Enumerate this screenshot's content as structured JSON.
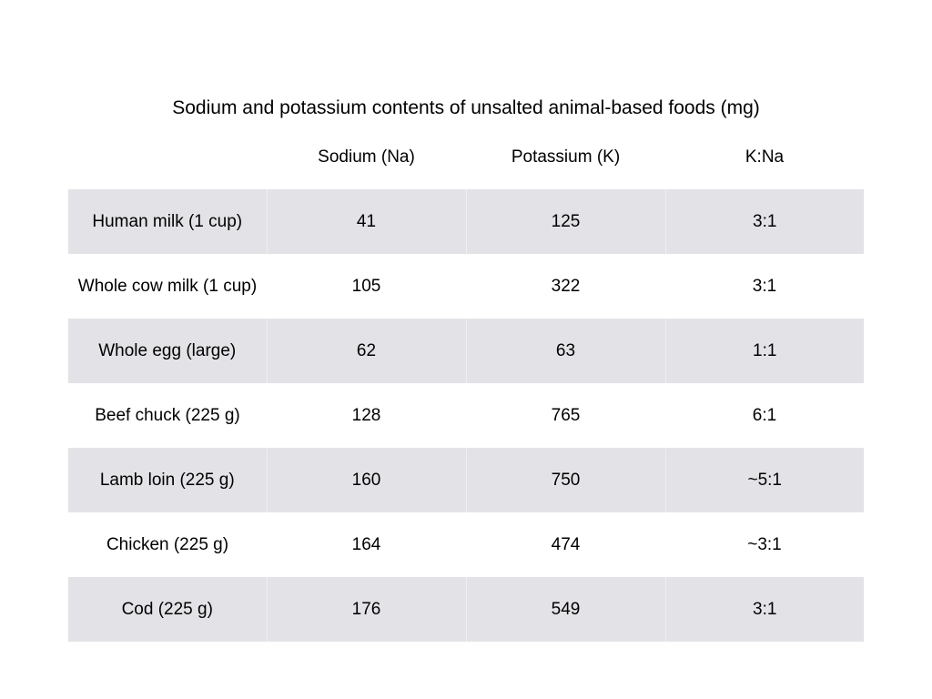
{
  "title": "Sodium  and potassium contents of unsalted animal-based foods (mg)",
  "table": {
    "headers": [
      "",
      "Sodium (Na)",
      "Potassium (K)",
      "K:Na"
    ],
    "rows": [
      [
        "Human milk (1 cup)",
        "41",
        "125",
        "3:1"
      ],
      [
        "Whole cow milk (1 cup)",
        "105",
        "322",
        "3:1"
      ],
      [
        "Whole egg (large)",
        "62",
        "63",
        "1:1"
      ],
      [
        "Beef chuck (225 g)",
        "128",
        "765",
        "6:1"
      ],
      [
        "Lamb loin (225 g)",
        "160",
        "750",
        "~5:1"
      ],
      [
        "Chicken (225 g)",
        "164",
        "474",
        "~3:1"
      ],
      [
        "Cod (225 g)",
        "176",
        "549",
        "3:1"
      ]
    ]
  },
  "colors": {
    "stripe": "#e3e3e7",
    "text": "#000000",
    "background": "#ffffff"
  }
}
